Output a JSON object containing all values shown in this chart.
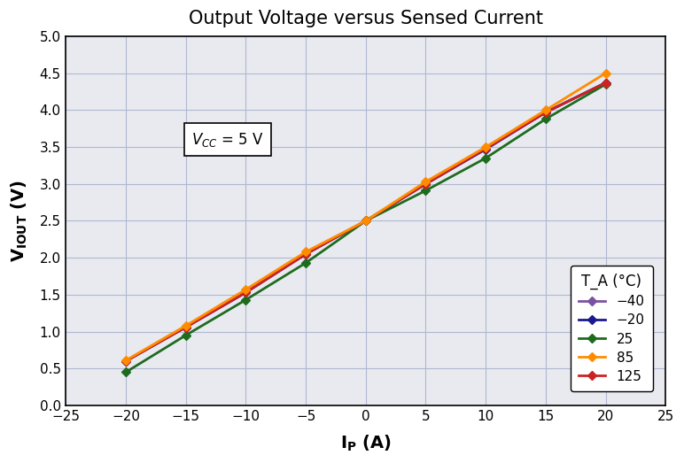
{
  "title": "Output Voltage versus Sensed Current",
  "xlabel": "I_P (A)",
  "ylabel": "V_IOUT (V)",
  "annotation": "V_CC = 5 V",
  "xlim": [
    -25,
    25
  ],
  "ylim": [
    0,
    5.0
  ],
  "xticks": [
    -25,
    -20,
    -15,
    -10,
    -5,
    0,
    5,
    10,
    15,
    20,
    25
  ],
  "yticks": [
    0,
    0.5,
    1.0,
    1.5,
    2.0,
    2.5,
    3.0,
    3.5,
    4.0,
    4.5,
    5.0
  ],
  "x_data": [
    -20,
    -15,
    -10,
    -5,
    0,
    5,
    10,
    15,
    20
  ],
  "series": [
    {
      "label": "−40",
      "color": "#7B52A0",
      "y": [
        0.6,
        1.06,
        1.53,
        2.05,
        2.5,
        3.0,
        3.48,
        3.97,
        4.37
      ]
    },
    {
      "label": "−20",
      "color": "#1A1A8C",
      "y": [
        0.6,
        1.06,
        1.53,
        2.05,
        2.5,
        3.0,
        3.47,
        3.97,
        4.37
      ]
    },
    {
      "label": "25",
      "color": "#1E6B1E",
      "y": [
        0.45,
        0.95,
        1.43,
        1.93,
        2.5,
        2.91,
        3.35,
        3.88,
        4.35
      ]
    },
    {
      "label": "85",
      "color": "#FF8C00",
      "y": [
        0.61,
        1.08,
        1.57,
        2.08,
        2.5,
        3.03,
        3.5,
        4.0,
        4.5
      ]
    },
    {
      "label": "125",
      "color": "#CC2222",
      "y": [
        0.6,
        1.06,
        1.53,
        2.05,
        2.5,
        3.0,
        3.48,
        3.97,
        4.37
      ]
    }
  ],
  "legend_title": "T_A (°C)",
  "background_color": "#ffffff",
  "plot_bg_color": "#e8eaf0",
  "grid_color": "#b0b8d0"
}
